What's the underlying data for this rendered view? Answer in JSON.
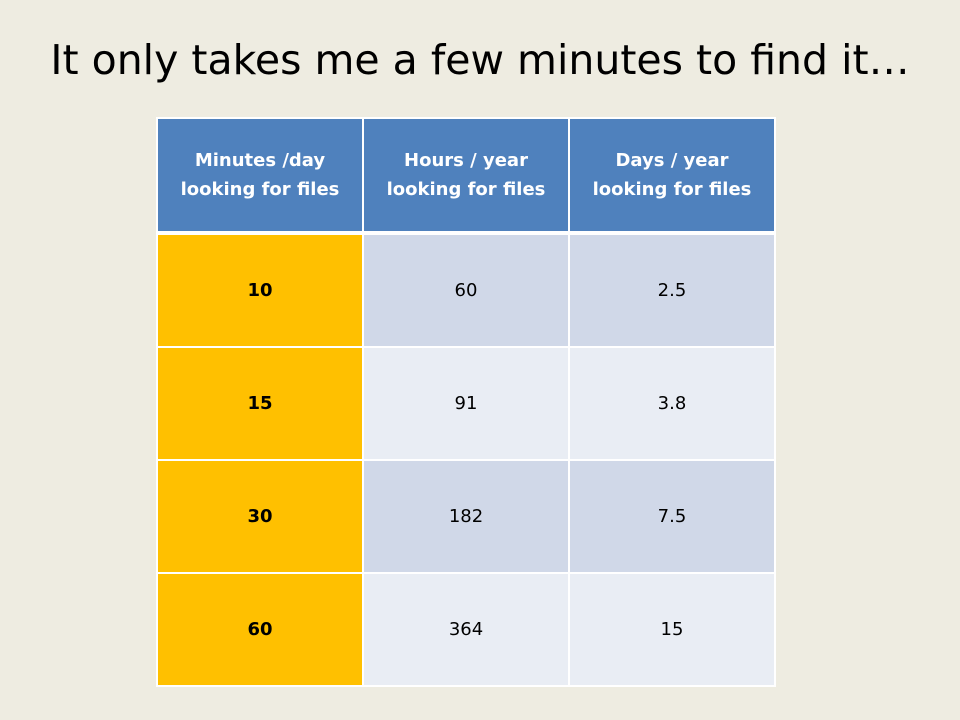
{
  "slide": {
    "title": "It only takes me a few minutes to find it…"
  },
  "table": {
    "headers": [
      "Minutes /day looking for files",
      "Hours / year looking for files",
      "Days / year looking for files"
    ],
    "rows": [
      [
        "10",
        "60",
        "2.5"
      ],
      [
        "15",
        "91",
        "3.8"
      ],
      [
        "30",
        "182",
        "7.5"
      ],
      [
        "60",
        "364",
        "15"
      ]
    ]
  },
  "colors": {
    "background": "#eeece1",
    "header": "#4f81bd",
    "first_column": "#ffc000",
    "band_dark": "#d0d8e8",
    "band_light": "#e9edf4"
  }
}
